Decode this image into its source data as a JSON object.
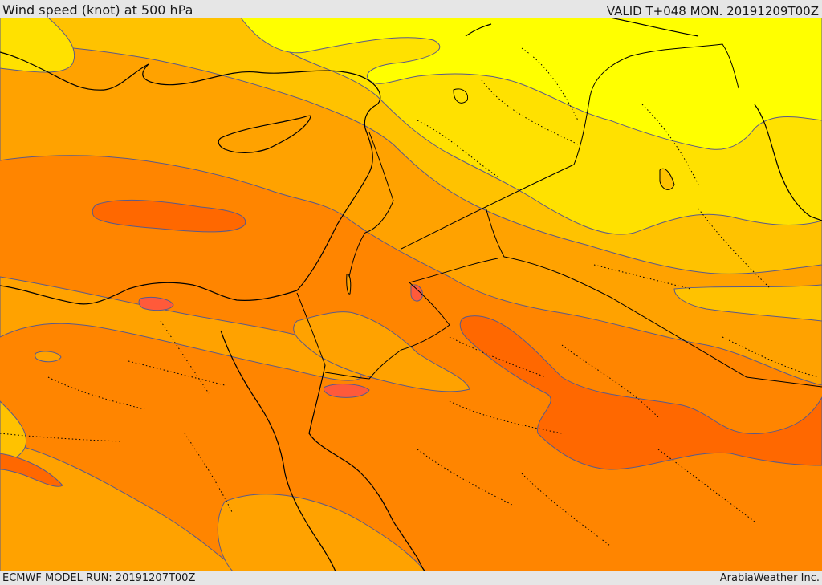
{
  "header": {
    "title": "Wind speed (knot) at 500 hPa",
    "valid_time": "VALID T+048 MON. 20191209T00Z"
  },
  "footer": {
    "model_run": "ECMWF MODEL RUN: 20191207T00Z",
    "credit": "ArabiaWeather Inc."
  },
  "map": {
    "field": "wind-speed",
    "level": "500 hPa",
    "palette": {
      "band_low": "#ffff00",
      "band_2": "#ffe100",
      "band_3": "#ffc200",
      "band_4": "#ffa200",
      "band_5": "#ff8500",
      "band_high": "#ff6800",
      "max_spot": "#ff5a3a",
      "contour": "#5a5a8a",
      "coast": "#000000"
    }
  }
}
